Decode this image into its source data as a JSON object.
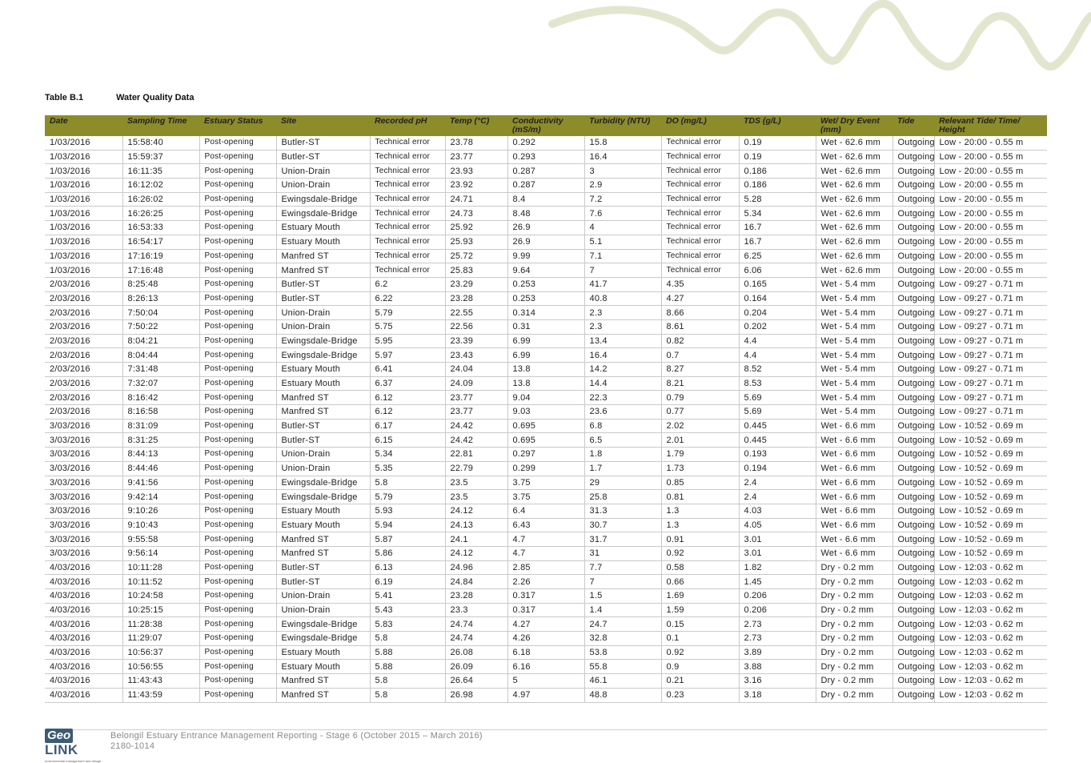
{
  "caption": {
    "number": "Table B.1",
    "title": "Water Quality Data"
  },
  "colors": {
    "header_bg": "#8c8c2a",
    "wave": "#e3e6cf",
    "logo": "#3e5a74"
  },
  "columns": [
    "Date",
    "Sampling Time",
    "Estuary Status",
    "Site",
    "Recorded pH",
    "Temp (°C)",
    "Conductivity (mS/m)",
    "Turbidity (NTU)",
    "DO (mg/L)",
    "TDS (g/L)",
    "Wet/ Dry Event (mm)",
    "Tide",
    "Relevant Tide/ Time/ Height"
  ],
  "rows": [
    [
      "1/03/2016",
      "15:58:40",
      "Post-opening",
      "Butler-ST",
      "Technical error",
      "23.78",
      "0.292",
      "15.8",
      "Technical error",
      "0.19",
      "Wet - 62.6 mm",
      "Outgoing",
      "Low - 20:00 - 0.55 m"
    ],
    [
      "1/03/2016",
      "15:59:37",
      "Post-opening",
      "Butler-ST",
      "Technical error",
      "23.77",
      "0.293",
      "16.4",
      "Technical error",
      "0.19",
      "Wet - 62.6 mm",
      "Outgoing",
      "Low - 20:00 - 0.55 m"
    ],
    [
      "1/03/2016",
      "16:11:35",
      "Post-opening",
      "Union-Drain",
      "Technical error",
      "23.93",
      "0.287",
      "3",
      "Technical error",
      "0.186",
      "Wet - 62.6 mm",
      "Outgoing",
      "Low - 20:00 - 0.55 m"
    ],
    [
      "1/03/2016",
      "16:12:02",
      "Post-opening",
      "Union-Drain",
      "Technical error",
      "23.92",
      "0.287",
      "2.9",
      "Technical error",
      "0.186",
      "Wet - 62.6 mm",
      "Outgoing",
      "Low - 20:00 - 0.55 m"
    ],
    [
      "1/03/2016",
      "16:26:02",
      "Post-opening",
      "Ewingsdale-Bridge",
      "Technical error",
      "24.71",
      "8.4",
      "7.2",
      "Technical error",
      "5.28",
      "Wet - 62.6 mm",
      "Outgoing",
      "Low - 20:00 - 0.55 m"
    ],
    [
      "1/03/2016",
      "16:26:25",
      "Post-opening",
      "Ewingsdale-Bridge",
      "Technical error",
      "24.73",
      "8.48",
      "7.6",
      "Technical error",
      "5.34",
      "Wet - 62.6 mm",
      "Outgoing",
      "Low - 20:00 - 0.55 m"
    ],
    [
      "1/03/2016",
      "16:53:33",
      "Post-opening",
      "Estuary Mouth",
      "Technical error",
      "25.92",
      "26.9",
      "4",
      "Technical error",
      "16.7",
      "Wet - 62.6 mm",
      "Outgoing",
      "Low - 20:00 - 0.55 m"
    ],
    [
      "1/03/2016",
      "16:54:17",
      "Post-opening",
      "Estuary Mouth",
      "Technical error",
      "25.93",
      "26.9",
      "5.1",
      "Technical error",
      "16.7",
      "Wet - 62.6 mm",
      "Outgoing",
      "Low - 20:00 - 0.55 m"
    ],
    [
      "1/03/2016",
      "17:16:19",
      "Post-opening",
      "Manfred ST",
      "Technical error",
      "25.72",
      "9.99",
      "7.1",
      "Technical error",
      "6.25",
      "Wet - 62.6 mm",
      "Outgoing",
      "Low - 20:00 - 0.55 m"
    ],
    [
      "1/03/2016",
      "17:16:48",
      "Post-opening",
      "Manfred ST",
      "Technical error",
      "25.83",
      "9.64",
      "7",
      "Technical error",
      "6.06",
      "Wet - 62.6 mm",
      "Outgoing",
      "Low - 20:00 - 0.55 m"
    ],
    [
      "2/03/2016",
      "8:25:48",
      "Post-opening",
      "Butler-ST",
      "6.2",
      "23.29",
      "0.253",
      "41.7",
      "4.35",
      "0.165",
      "Wet - 5.4 mm",
      "Outgoing",
      "Low - 09:27 - 0.71 m"
    ],
    [
      "2/03/2016",
      "8:26:13",
      "Post-opening",
      "Butler-ST",
      "6.22",
      "23.28",
      "0.253",
      "40.8",
      "4.27",
      "0.164",
      "Wet - 5.4 mm",
      "Outgoing",
      "Low - 09:27 - 0.71 m"
    ],
    [
      "2/03/2016",
      "7:50:04",
      "Post-opening",
      "Union-Drain",
      "5.79",
      "22.55",
      "0.314",
      "2.3",
      "8.66",
      "0.204",
      "Wet - 5.4 mm",
      "Outgoing",
      "Low - 09:27 - 0.71 m"
    ],
    [
      "2/03/2016",
      "7:50:22",
      "Post-opening",
      "Union-Drain",
      "5.75",
      "22.56",
      "0.31",
      "2.3",
      "8.61",
      "0.202",
      "Wet - 5.4 mm",
      "Outgoing",
      "Low - 09:27 - 0.71 m"
    ],
    [
      "2/03/2016",
      "8:04:21",
      "Post-opening",
      "Ewingsdale-Bridge",
      "5.95",
      "23.39",
      "6.99",
      "13.4",
      "0.82",
      "4.4",
      "Wet - 5.4 mm",
      "Outgoing",
      "Low - 09:27 - 0.71 m"
    ],
    [
      "2/03/2016",
      "8:04:44",
      "Post-opening",
      "Ewingsdale-Bridge",
      "5.97",
      "23.43",
      "6.99",
      "16.4",
      "0.7",
      "4.4",
      "Wet - 5.4 mm",
      "Outgoing",
      "Low - 09:27 - 0.71 m"
    ],
    [
      "2/03/2016",
      "7:31:48",
      "Post-opening",
      "Estuary Mouth",
      "6.41",
      "24.04",
      "13.8",
      "14.2",
      "8.27",
      "8.52",
      "Wet - 5.4 mm",
      "Outgoing",
      "Low - 09:27 - 0.71 m"
    ],
    [
      "2/03/2016",
      "7:32:07",
      "Post-opening",
      "Estuary Mouth",
      "6.37",
      "24.09",
      "13.8",
      "14.4",
      "8.21",
      "8.53",
      "Wet - 5.4 mm",
      "Outgoing",
      "Low - 09:27 - 0.71 m"
    ],
    [
      "2/03/2016",
      "8:16:42",
      "Post-opening",
      "Manfred ST",
      "6.12",
      "23.77",
      "9.04",
      "22.3",
      "0.79",
      "5.69",
      "Wet - 5.4 mm",
      "Outgoing",
      "Low - 09:27 - 0.71 m"
    ],
    [
      "2/03/2016",
      "8:16:58",
      "Post-opening",
      "Manfred ST",
      "6.12",
      "23.77",
      "9.03",
      "23.6",
      "0.77",
      "5.69",
      "Wet - 5.4 mm",
      "Outgoing",
      "Low - 09:27 - 0.71 m"
    ],
    [
      "3/03/2016",
      "8:31:09",
      "Post-opening",
      "Butler-ST",
      "6.17",
      "24.42",
      "0.695",
      "6.8",
      "2.02",
      "0.445",
      "Wet - 6.6 mm",
      "Outgoing",
      "Low - 10:52 - 0.69 m"
    ],
    [
      "3/03/2016",
      "8:31:25",
      "Post-opening",
      "Butler-ST",
      "6.15",
      "24.42",
      "0.695",
      "6.5",
      "2.01",
      "0.445",
      "Wet - 6.6 mm",
      "Outgoing",
      "Low - 10:52 - 0.69 m"
    ],
    [
      "3/03/2016",
      "8:44:13",
      "Post-opening",
      "Union-Drain",
      "5.34",
      "22.81",
      "0.297",
      "1.8",
      "1.79",
      "0.193",
      "Wet - 6.6 mm",
      "Outgoing",
      "Low - 10:52 - 0.69 m"
    ],
    [
      "3/03/2016",
      "8:44:46",
      "Post-opening",
      "Union-Drain",
      "5.35",
      "22.79",
      "0.299",
      "1.7",
      "1.73",
      "0.194",
      "Wet - 6.6 mm",
      "Outgoing",
      "Low - 10:52 - 0.69 m"
    ],
    [
      "3/03/2016",
      "9:41:56",
      "Post-opening",
      "Ewingsdale-Bridge",
      "5.8",
      "23.5",
      "3.75",
      "29",
      "0.85",
      "2.4",
      "Wet - 6.6 mm",
      "Outgoing",
      "Low - 10:52 - 0.69 m"
    ],
    [
      "3/03/2016",
      "9:42:14",
      "Post-opening",
      "Ewingsdale-Bridge",
      "5.79",
      "23.5",
      "3.75",
      "25.8",
      "0.81",
      "2.4",
      "Wet - 6.6 mm",
      "Outgoing",
      "Low - 10:52 - 0.69 m"
    ],
    [
      "3/03/2016",
      "9:10:26",
      "Post-opening",
      "Estuary Mouth",
      "5.93",
      "24.12",
      "6.4",
      "31.3",
      "1.3",
      "4.03",
      "Wet - 6.6 mm",
      "Outgoing",
      "Low - 10:52 - 0.69 m"
    ],
    [
      "3/03/2016",
      "9:10:43",
      "Post-opening",
      "Estuary Mouth",
      "5.94",
      "24.13",
      "6.43",
      "30.7",
      "1.3",
      "4.05",
      "Wet - 6.6 mm",
      "Outgoing",
      "Low - 10:52 - 0.69 m"
    ],
    [
      "3/03/2016",
      "9:55:58",
      "Post-opening",
      "Manfred ST",
      "5.87",
      "24.1",
      "4.7",
      "31.7",
      "0.91",
      "3.01",
      "Wet - 6.6 mm",
      "Outgoing",
      "Low - 10:52 - 0.69 m"
    ],
    [
      "3/03/2016",
      "9:56:14",
      "Post-opening",
      "Manfred ST",
      "5.86",
      "24.12",
      "4.7",
      "31",
      "0.92",
      "3.01",
      "Wet - 6.6 mm",
      "Outgoing",
      "Low - 10:52 - 0.69 m"
    ],
    [
      "4/03/2016",
      "10:11:28",
      "Post-opening",
      "Butler-ST",
      "6.13",
      "24.96",
      "2.85",
      "7.7",
      "0.58",
      "1.82",
      "Dry - 0.2 mm",
      "Outgoing",
      "Low - 12:03 - 0.62 m"
    ],
    [
      "4/03/2016",
      "10:11:52",
      "Post-opening",
      "Butler-ST",
      "6.19",
      "24.84",
      "2.26",
      "7",
      "0.66",
      "1.45",
      "Dry - 0.2 mm",
      "Outgoing",
      "Low - 12:03 - 0.62 m"
    ],
    [
      "4/03/2016",
      "10:24:58",
      "Post-opening",
      "Union-Drain",
      "5.41",
      "23.28",
      "0.317",
      "1.5",
      "1.69",
      "0.206",
      "Dry - 0.2 mm",
      "Outgoing",
      "Low - 12:03 - 0.62 m"
    ],
    [
      "4/03/2016",
      "10:25:15",
      "Post-opening",
      "Union-Drain",
      "5.43",
      "23.3",
      "0.317",
      "1.4",
      "1.59",
      "0.206",
      "Dry - 0.2 mm",
      "Outgoing",
      "Low - 12:03 - 0.62 m"
    ],
    [
      "4/03/2016",
      "11:28:38",
      "Post-opening",
      "Ewingsdale-Bridge",
      "5.83",
      "24.74",
      "4.27",
      "24.7",
      "0.15",
      "2.73",
      "Dry - 0.2 mm",
      "Outgoing",
      "Low - 12:03 - 0.62 m"
    ],
    [
      "4/03/2016",
      "11:29:07",
      "Post-opening",
      "Ewingsdale-Bridge",
      "5.8",
      "24.74",
      "4.26",
      "32.8",
      "0.1",
      "2.73",
      "Dry - 0.2 mm",
      "Outgoing",
      "Low - 12:03 - 0.62 m"
    ],
    [
      "4/03/2016",
      "10:56:37",
      "Post-opening",
      "Estuary Mouth",
      "5.88",
      "26.08",
      "6.18",
      "53.8",
      "0.92",
      "3.89",
      "Dry - 0.2 mm",
      "Outgoing",
      "Low - 12:03 - 0.62 m"
    ],
    [
      "4/03/2016",
      "10:56:55",
      "Post-opening",
      "Estuary Mouth",
      "5.88",
      "26.09",
      "6.16",
      "55.8",
      "0.9",
      "3.88",
      "Dry - 0.2 mm",
      "Outgoing",
      "Low - 12:03 - 0.62 m"
    ],
    [
      "4/03/2016",
      "11:43:43",
      "Post-opening",
      "Manfred ST",
      "5.8",
      "26.64",
      "5",
      "46.1",
      "0.21",
      "3.16",
      "Dry - 0.2 mm",
      "Outgoing",
      "Low - 12:03 - 0.62 m"
    ],
    [
      "4/03/2016",
      "11:43:59",
      "Post-opening",
      "Manfred ST",
      "5.8",
      "26.98",
      "4.97",
      "48.8",
      "0.23",
      "3.18",
      "Dry - 0.2 mm",
      "Outgoing",
      "Low - 12:03 - 0.62 m"
    ]
  ],
  "footer": {
    "logo_geo": "Geo",
    "logo_link": "LINK",
    "logo_tagline": "environmental management and design",
    "report_title": "Belongil Estuary Entrance Management Reporting - Stage 6 (October 2015 – March 2016)",
    "project_number": "2180-1014"
  }
}
